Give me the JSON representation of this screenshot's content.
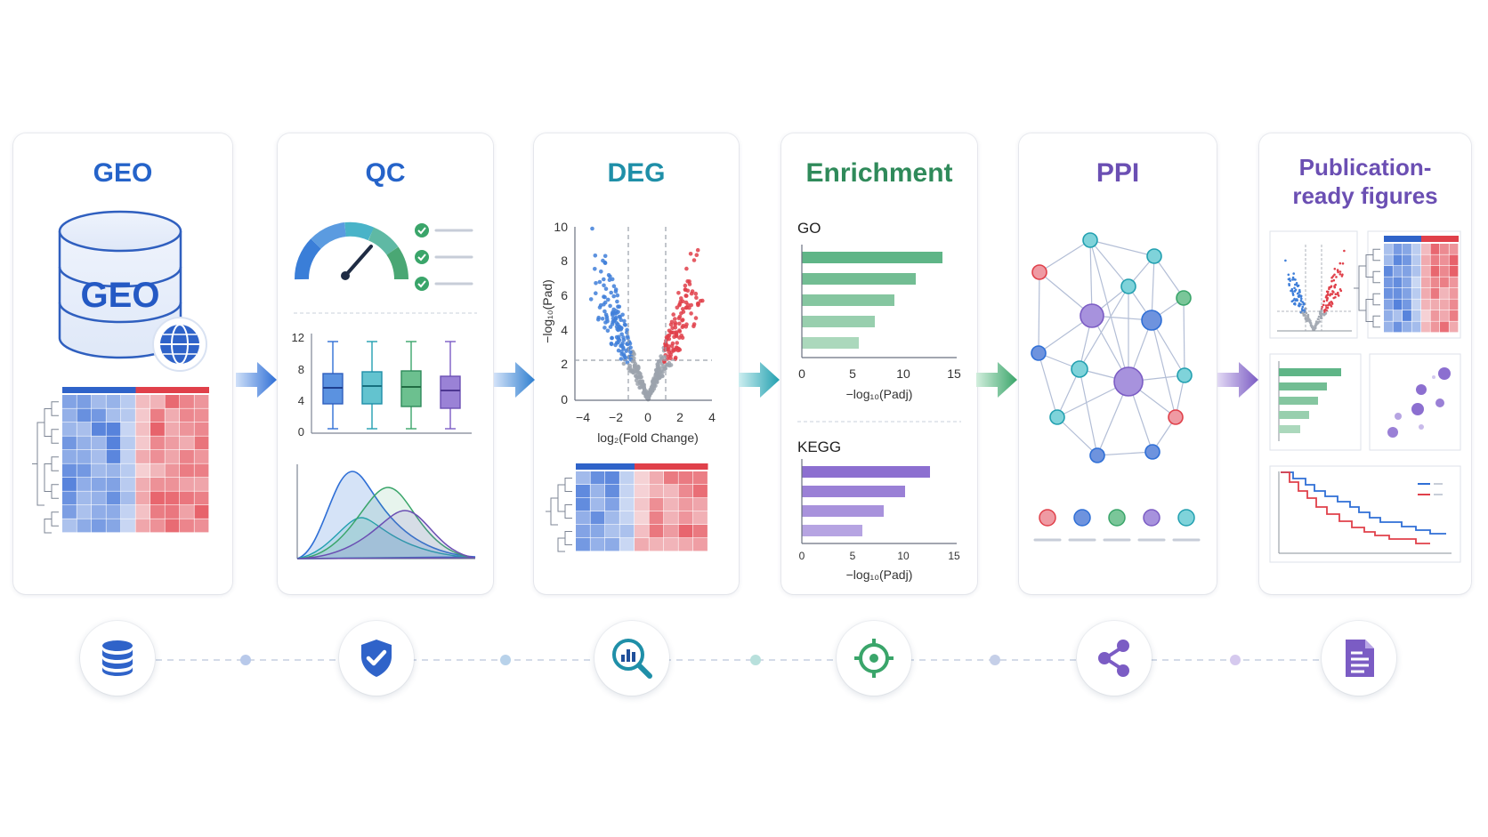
{
  "steps": [
    {
      "title": "GEO",
      "color": "#2563c9"
    },
    {
      "title": "QC",
      "color": "#2563c9"
    },
    {
      "title": "DEG",
      "color": "#1f8fa8"
    },
    {
      "title": "Enrichment",
      "color": "#2f8a5a"
    },
    {
      "title": "PPI",
      "color": "#6b4fb3"
    },
    {
      "title": "Publication-ready figures",
      "color": "#6b4fb3"
    }
  ],
  "geo": {
    "db_label": "GEO"
  },
  "qc": {
    "box_yticks": [
      "0",
      "4",
      "8",
      "12"
    ]
  },
  "deg": {
    "ylabel": "−log₁₀(Pad)",
    "xlabel": "log₂(Fold Change)",
    "yticks": [
      "0",
      "2",
      "4",
      "6",
      "8",
      "10"
    ],
    "xticks": [
      "−4",
      "−2",
      "0",
      "2",
      "4"
    ]
  },
  "enrichment": {
    "go_label": "GO",
    "kegg_label": "KEGG",
    "xlabel": "−log₁₀(Padj)",
    "xticks": [
      "0",
      "5",
      "10",
      "15"
    ]
  },
  "icons": [
    "database-icon",
    "shield-check-icon",
    "chart-search-icon",
    "target-icon",
    "share-network-icon",
    "document-icon"
  ],
  "colors": {
    "blue": "#2f6fd6",
    "teal": "#22a0b0",
    "green": "#3aa56a",
    "purple": "#7b5cc4",
    "red": "#e0404a"
  }
}
